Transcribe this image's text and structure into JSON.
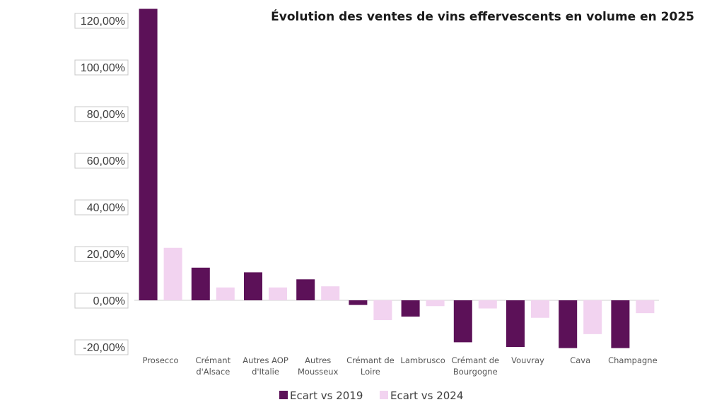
{
  "chart_data": {
    "type": "bar",
    "title": "Évolution des ventes de vins effervescents en volume en 2025",
    "categories": [
      [
        "Prosecco"
      ],
      [
        "Crémant",
        "d'Alsace"
      ],
      [
        "Autres AOP",
        "d'Italie"
      ],
      [
        "Autres",
        "Mousseux"
      ],
      [
        "Crémant de",
        "Loire"
      ],
      [
        "Lambrusco"
      ],
      [
        "Crémant de",
        "Bourgogne"
      ],
      [
        "Vouvray"
      ],
      [
        "Cava"
      ],
      [
        "Champagne"
      ]
    ],
    "series": [
      {
        "name": "Ecart vs 2019",
        "color": "#5c1158",
        "values": [
          125,
          14,
          12,
          9,
          -2,
          -7,
          -18,
          -20,
          -20.5,
          -20.5
        ]
      },
      {
        "name": "Ecart vs 2024",
        "color": "#f2d3f0",
        "values": [
          22.5,
          5.5,
          5.5,
          6,
          -8.5,
          -2.5,
          -3.5,
          -7.5,
          -14.5,
          -5.5
        ]
      }
    ],
    "yticks": [
      "-20,00%",
      "0,00%",
      "20,00%",
      "40,00%",
      "60,00%",
      "80,00%",
      "100,00%",
      "120,00%"
    ],
    "ytick_values": [
      -20,
      0,
      20,
      40,
      60,
      80,
      100,
      120
    ],
    "ylim": [
      -20,
      125
    ],
    "xlabel": "",
    "ylabel": "",
    "grid": false,
    "legend_position": "bottom"
  }
}
